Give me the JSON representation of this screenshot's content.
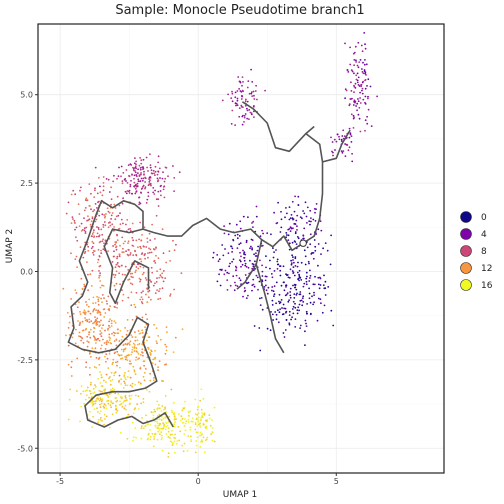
{
  "chart_data": {
    "type": "scatter",
    "title": "Sample: Monocle Pseudotime branch1",
    "xlabel": "UMAP 1",
    "ylabel": "UMAP 2",
    "xlim": [
      -5.8,
      8.9
    ],
    "ylim": [
      -5.7,
      7.0
    ],
    "x_ticks": [
      -5,
      0,
      5
    ],
    "y_ticks": [
      -5.0,
      -2.5,
      0.0,
      2.5,
      5.0
    ],
    "x_tick_labels": [
      "-5",
      "0",
      "5"
    ],
    "y_tick_labels": [
      "-5.0",
      "-2.5",
      "0.0",
      "2.5",
      "5.0"
    ],
    "grid": true,
    "legend_position": "right",
    "legend": {
      "entries": [
        {
          "label": "0",
          "value": 0,
          "color": "#0d0887"
        },
        {
          "label": "4",
          "value": 4,
          "color": "#7e03a8"
        },
        {
          "label": "8",
          "value": 8,
          "color": "#cc4778"
        },
        {
          "label": "12",
          "value": 12,
          "color": "#f89540"
        },
        {
          "label": "16",
          "value": 16,
          "color": "#f0f921"
        }
      ]
    },
    "clusters": [
      {
        "cx": -2.0,
        "cy": 2.6,
        "sx": 0.9,
        "sy": 0.55,
        "n": 180,
        "v": [
          5,
          8
        ]
      },
      {
        "cx": -3.6,
        "cy": 1.2,
        "sx": 0.9,
        "sy": 1.0,
        "n": 200,
        "v": [
          7,
          11
        ]
      },
      {
        "cx": -2.2,
        "cy": 0.2,
        "sx": 1.1,
        "sy": 1.0,
        "n": 220,
        "v": [
          8,
          11
        ]
      },
      {
        "cx": -3.7,
        "cy": -1.5,
        "sx": 0.8,
        "sy": 1.0,
        "n": 220,
        "v": [
          10,
          13
        ]
      },
      {
        "cx": -2.2,
        "cy": -2.3,
        "sx": 1.0,
        "sy": 0.8,
        "n": 200,
        "v": [
          11,
          14
        ]
      },
      {
        "cx": -3.2,
        "cy": -3.6,
        "sx": 1.0,
        "sy": 0.6,
        "n": 200,
        "v": [
          13,
          16
        ]
      },
      {
        "cx": -1.3,
        "cy": -4.3,
        "sx": 0.9,
        "sy": 0.6,
        "n": 180,
        "v": [
          14,
          17
        ]
      },
      {
        "cx": 0.0,
        "cy": -4.3,
        "sx": 0.45,
        "sy": 0.6,
        "n": 90,
        "v": [
          14,
          17
        ]
      },
      {
        "cx": 1.6,
        "cy": 0.4,
        "sx": 0.8,
        "sy": 0.9,
        "n": 140,
        "v": [
          1,
          5
        ]
      },
      {
        "cx": 3.4,
        "cy": -0.4,
        "sx": 1.1,
        "sy": 1.2,
        "n": 260,
        "v": [
          0,
          3
        ]
      },
      {
        "cx": 3.7,
        "cy": 1.4,
        "sx": 0.9,
        "sy": 0.6,
        "n": 90,
        "v": [
          1,
          4
        ]
      },
      {
        "cx": 1.6,
        "cy": 4.8,
        "sx": 0.45,
        "sy": 0.6,
        "n": 80,
        "v": [
          4,
          7
        ]
      },
      {
        "cx": 5.8,
        "cy": 5.3,
        "sx": 0.4,
        "sy": 1.1,
        "n": 110,
        "v": [
          3,
          7
        ]
      },
      {
        "cx": 5.3,
        "cy": 3.6,
        "sx": 0.4,
        "sy": 0.4,
        "n": 40,
        "v": [
          3,
          6
        ]
      }
    ],
    "trajectory": [
      [
        [
          -0.9,
          -4.4
        ],
        [
          -1.2,
          -4.0
        ],
        [
          -1.6,
          -4.2
        ],
        [
          -2.0,
          -4.3
        ],
        [
          -2.4,
          -4.1
        ],
        [
          -2.9,
          -4.2
        ],
        [
          -3.4,
          -4.4
        ],
        [
          -4.0,
          -4.2
        ],
        [
          -4.1,
          -3.8
        ],
        [
          -3.7,
          -3.5
        ],
        [
          -3.1,
          -3.4
        ],
        [
          -2.5,
          -3.4
        ],
        [
          -1.9,
          -3.3
        ],
        [
          -1.5,
          -3.1
        ],
        [
          -1.7,
          -2.6
        ],
        [
          -2.0,
          -2.0
        ],
        [
          -1.8,
          -1.5
        ],
        [
          -2.2,
          -1.3
        ],
        [
          -2.5,
          -1.8
        ],
        [
          -3.0,
          -2.2
        ],
        [
          -3.6,
          -2.3
        ],
        [
          -4.2,
          -2.2
        ],
        [
          -4.7,
          -2.0
        ],
        [
          -4.5,
          -1.6
        ],
        [
          -4.6,
          -1.0
        ],
        [
          -4.2,
          -0.7
        ],
        [
          -4.0,
          -0.3
        ],
        [
          -4.3,
          0.3
        ],
        [
          -4.0,
          0.9
        ],
        [
          -3.7,
          1.6
        ],
        [
          -3.5,
          2.0
        ],
        [
          -3.1,
          1.8
        ],
        [
          -2.7,
          2.0
        ],
        [
          -2.3,
          1.9
        ],
        [
          -2.0,
          1.7
        ],
        [
          -2.0,
          1.2
        ],
        [
          -1.6,
          1.1
        ],
        [
          -1.1,
          1.0
        ],
        [
          -0.6,
          1.0
        ],
        [
          -0.2,
          1.3
        ],
        [
          0.3,
          1.5
        ],
        [
          0.8,
          1.2
        ],
        [
          1.3,
          1.1
        ],
        [
          1.9,
          1.2
        ],
        [
          2.3,
          0.9
        ],
        [
          2.7,
          0.7
        ],
        [
          3.1,
          1.0
        ],
        [
          3.4,
          0.6
        ],
        [
          3.8,
          0.8
        ],
        [
          4.2,
          1.0
        ],
        [
          4.4,
          1.5
        ],
        [
          4.5,
          2.2
        ],
        [
          4.5,
          3.1
        ],
        [
          4.4,
          3.6
        ],
        [
          3.9,
          3.9
        ],
        [
          3.3,
          3.4
        ],
        [
          2.8,
          3.5
        ],
        [
          2.5,
          4.2
        ],
        [
          2.0,
          4.6
        ],
        [
          1.6,
          4.8
        ]
      ],
      [
        [
          -2.0,
          1.2
        ],
        [
          -2.5,
          1.1
        ],
        [
          -3.1,
          1.2
        ],
        [
          -3.4,
          0.7
        ],
        [
          -3.1,
          0.1
        ],
        [
          -3.2,
          -0.6
        ],
        [
          -3.0,
          -0.9
        ],
        [
          -2.7,
          -0.3
        ],
        [
          -2.3,
          0.3
        ],
        [
          -1.8,
          0.1
        ],
        [
          -1.8,
          -0.5
        ]
      ],
      [
        [
          2.3,
          0.9
        ],
        [
          2.1,
          0.2
        ],
        [
          2.4,
          -0.6
        ],
        [
          2.6,
          -1.2
        ],
        [
          2.8,
          -1.9
        ],
        [
          3.1,
          -2.3
        ]
      ],
      [
        [
          2.1,
          0.2
        ],
        [
          1.7,
          -0.3
        ],
        [
          1.4,
          -0.5
        ]
      ],
      [
        [
          4.5,
          3.1
        ],
        [
          5.0,
          3.2
        ],
        [
          5.2,
          3.6
        ],
        [
          5.5,
          4.0
        ]
      ],
      [
        [
          3.9,
          3.9
        ],
        [
          4.2,
          4.1
        ]
      ]
    ],
    "trajectory_node": [
      3.8,
      0.8
    ]
  }
}
